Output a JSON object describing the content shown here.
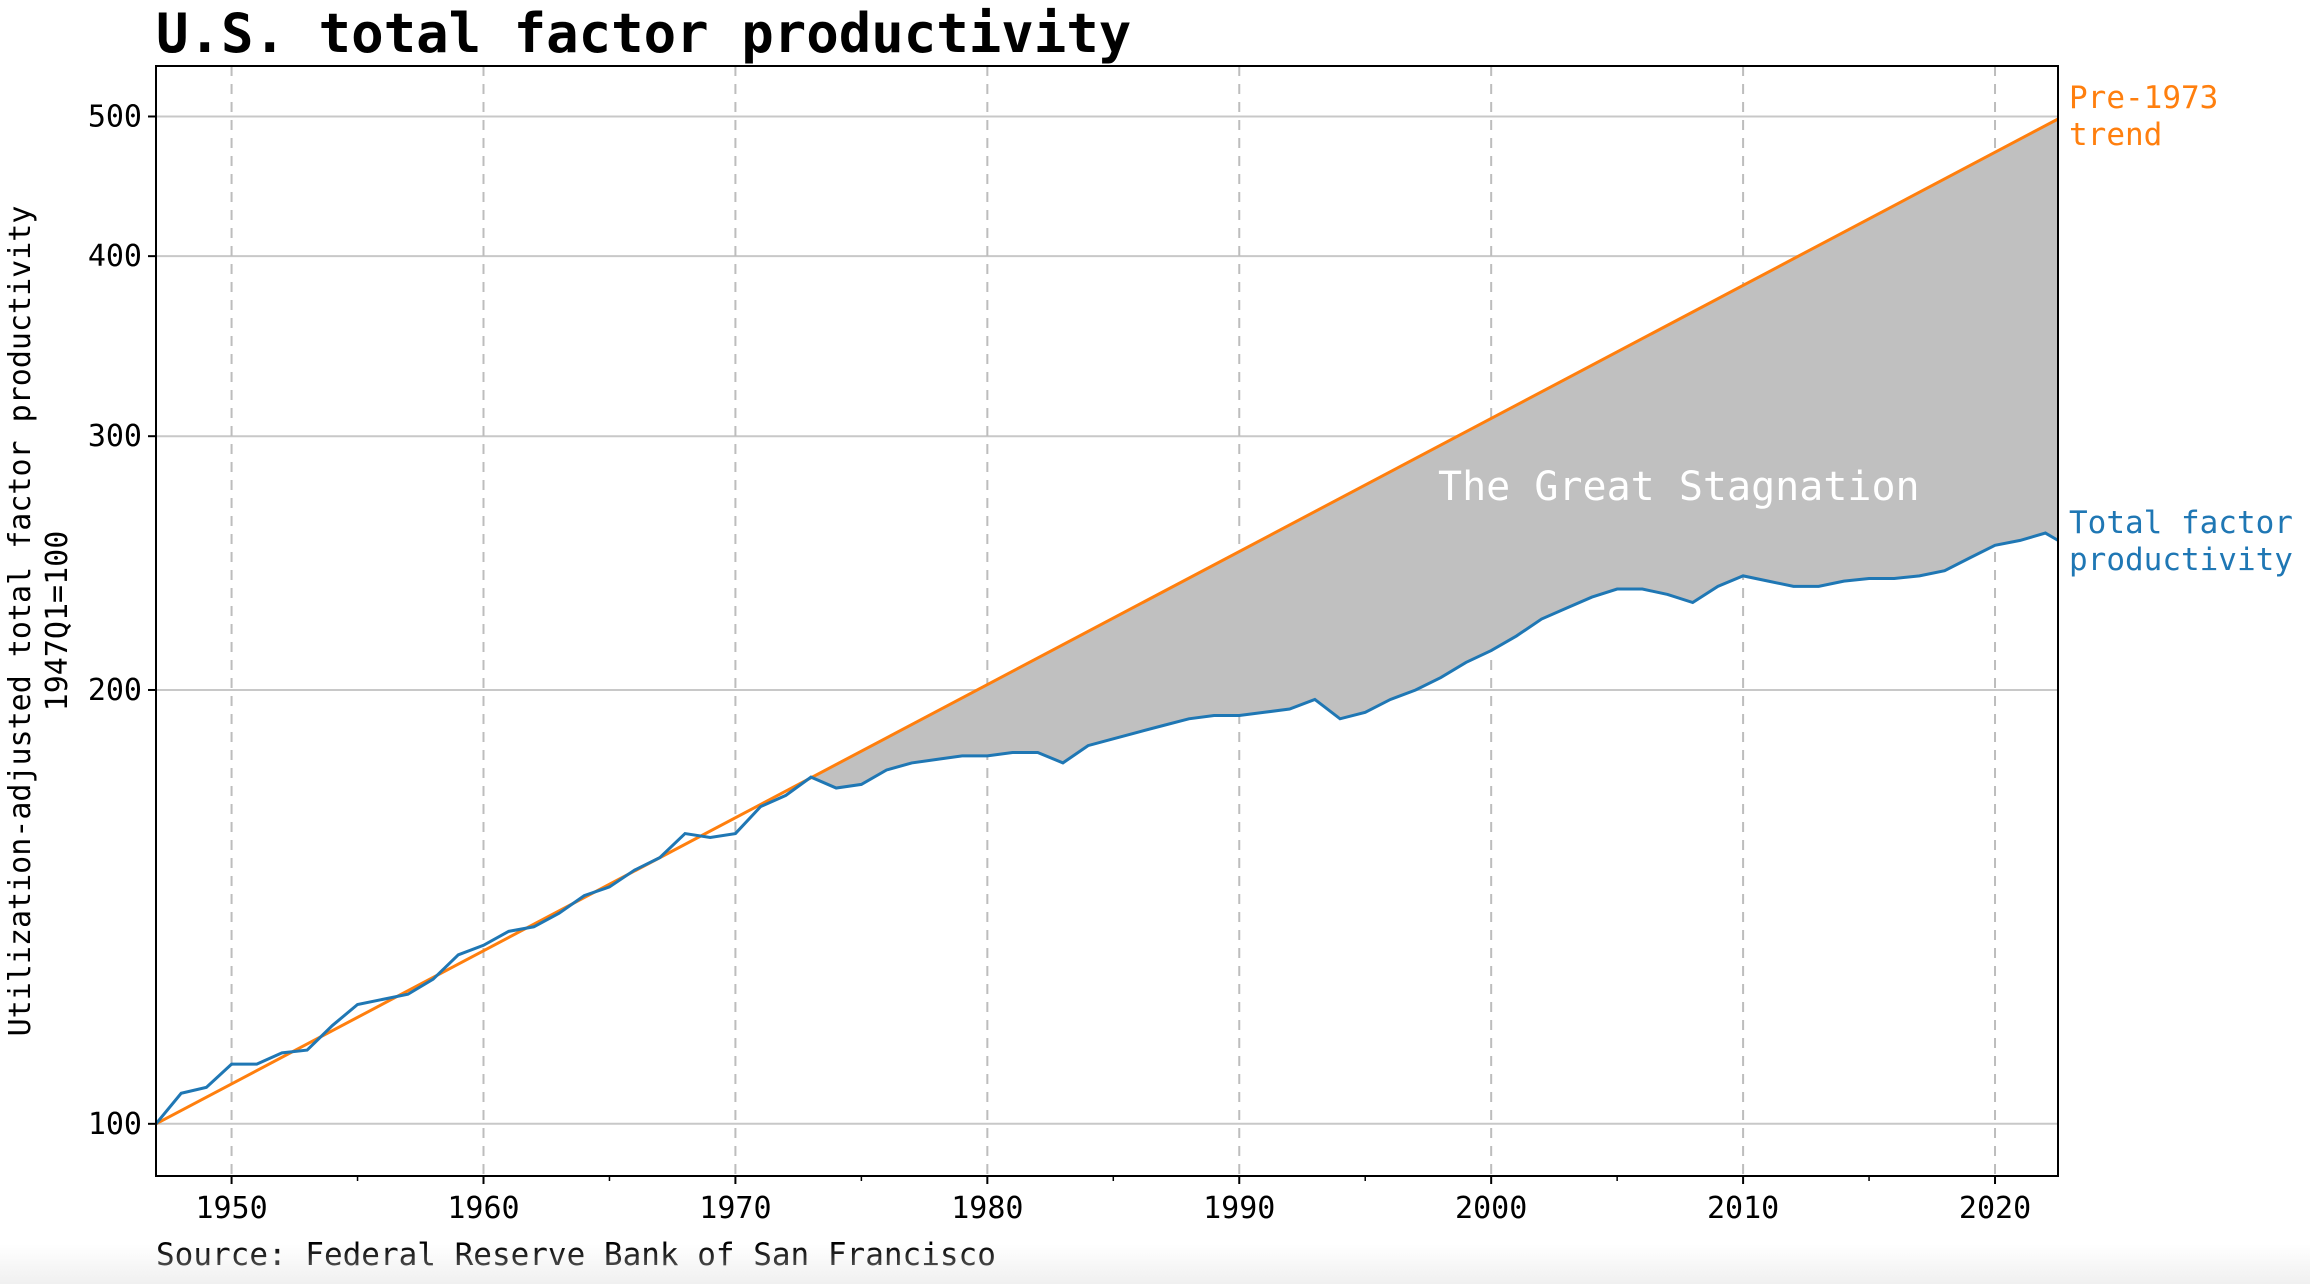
{
  "chart_data": {
    "type": "line",
    "title": "U.S. total factor productivity",
    "ylabel_line1": "Utilization-adjusted total factor productivity",
    "ylabel_line2": "1947Q1=100",
    "xlabel": "",
    "source": "Source: Federal Reserve Bank of San Francisco",
    "y_scale": "log",
    "xlim": [
      1947,
      2022.5
    ],
    "ylim": [
      92,
      542
    ],
    "x_ticks": [
      1950,
      1960,
      1970,
      1980,
      1990,
      2000,
      2010,
      2020
    ],
    "x_tick_labels": [
      "1950",
      "1960",
      "1970",
      "1980",
      "1990",
      "2000",
      "2010",
      "2020"
    ],
    "y_ticks": [
      100,
      200,
      300,
      400,
      500
    ],
    "y_tick_labels": [
      "100",
      "200",
      "300",
      "400",
      "500"
    ],
    "grid": {
      "x": "dashed",
      "y": "solid"
    },
    "shaded_region_label": "The Great Stagnation",
    "shaded_region_start": 1973,
    "series": [
      {
        "name": "Total factor productivity",
        "label_lines": [
          "Total factor",
          "productivity"
        ],
        "color": "#1f77b4",
        "x": [
          1947,
          1948,
          1949,
          1950,
          1951,
          1952,
          1953,
          1954,
          1955,
          1956,
          1957,
          1958,
          1959,
          1960,
          1961,
          1962,
          1963,
          1964,
          1965,
          1966,
          1967,
          1968,
          1969,
          1970,
          1971,
          1972,
          1973,
          1974,
          1975,
          1976,
          1977,
          1978,
          1979,
          1980,
          1981,
          1982,
          1983,
          1984,
          1985,
          1986,
          1987,
          1988,
          1989,
          1990,
          1991,
          1992,
          1993,
          1994,
          1995,
          1996,
          1997,
          1998,
          1999,
          2000,
          2001,
          2002,
          2003,
          2004,
          2005,
          2006,
          2007,
          2008,
          2009,
          2010,
          2011,
          2012,
          2013,
          2014,
          2015,
          2016,
          2017,
          2018,
          2019,
          2020,
          2021,
          2022,
          2022.5
        ],
        "y": [
          100,
          105,
          106,
          110,
          110,
          112,
          112.5,
          117,
          121,
          122,
          123,
          126,
          131,
          133,
          136,
          137,
          140,
          144,
          146,
          150,
          153,
          159,
          158,
          159,
          166,
          169,
          174,
          171,
          172,
          176,
          178,
          179,
          180,
          180,
          181,
          181,
          178,
          183,
          185,
          187,
          189,
          191,
          192,
          192,
          193,
          194,
          197,
          191,
          193,
          197,
          200,
          204,
          209,
          213,
          218,
          224,
          228,
          232,
          235,
          235,
          233,
          230,
          236,
          240,
          238,
          236,
          236,
          238,
          239,
          239,
          240,
          242,
          247,
          252,
          254,
          257,
          254
        ]
      },
      {
        "name": "Pre-1973 trend",
        "label_lines": [
          "Pre-1973",
          "trend"
        ],
        "color": "#ff7f0e",
        "x": [
          1947,
          2022.5
        ],
        "y": [
          100,
          498
        ]
      }
    ],
    "fill_color": "#c0c0c0"
  }
}
